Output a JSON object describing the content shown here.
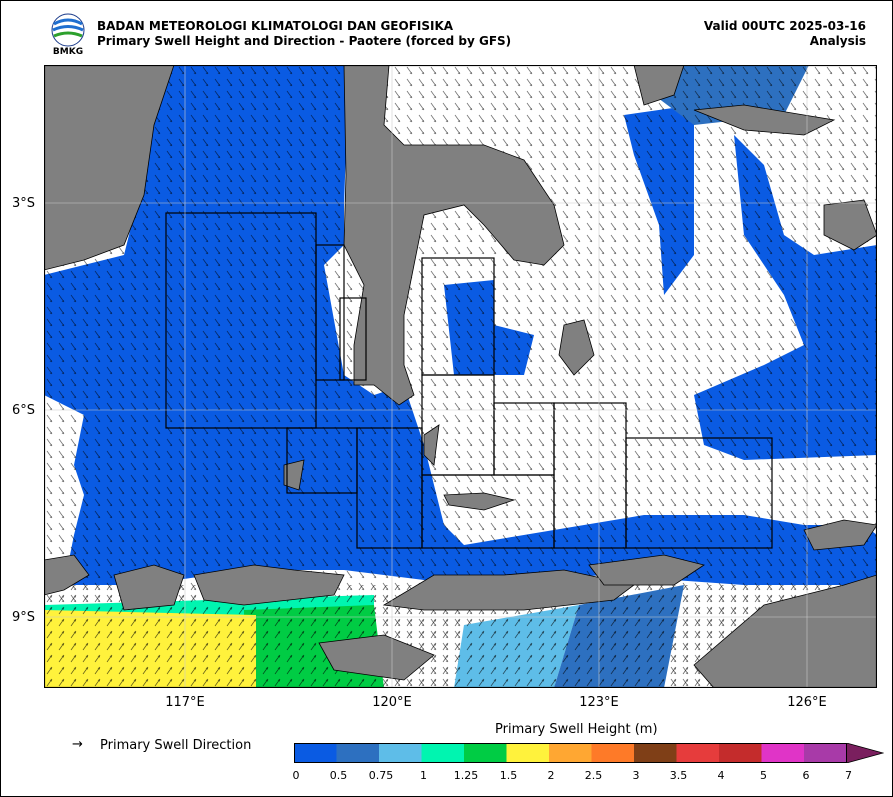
{
  "header": {
    "logo_text": "BMKG",
    "agency": "BADAN METEOROLOGI KLIMATOLOGI DAN GEOFISIKA",
    "product": "Primary Swell Height and Direction - Paotere (forced by GFS)",
    "valid": "Valid 00UTC 2025-03-16",
    "mode": "Analysis"
  },
  "map": {
    "lat_labels": [
      "3°S",
      "6°S",
      "9°S"
    ],
    "lon_labels": [
      "117°E",
      "120°E",
      "123°E",
      "126°E"
    ],
    "colors": {
      "sea_low": "#0a5be3",
      "land": "#808080",
      "sea_mid": "#2d70c0",
      "sea_light": "#5ebde8",
      "cyan": "#00f5b0",
      "green": "#00cc44",
      "yellow": "#fff23c"
    }
  },
  "legend": {
    "arrow_symbol": "→",
    "direction_label": "Primary Swell Direction",
    "colorbar_title": "Primary Swell Height (m)",
    "ticks": [
      "0",
      "0.5",
      "0.75",
      "1",
      "1.25",
      "1.5",
      "2",
      "2.5",
      "3",
      "3.5",
      "4",
      "5",
      "6",
      "7"
    ],
    "colors": [
      "#0a5be3",
      "#2d70c0",
      "#5ebde8",
      "#00f5b0",
      "#00cc44",
      "#fff23c",
      "#ffa732",
      "#fe7a28",
      "#7f3f17",
      "#e63c3c",
      "#c42c2c",
      "#e034c7",
      "#a83aa8",
      "#7a1f5e"
    ]
  }
}
